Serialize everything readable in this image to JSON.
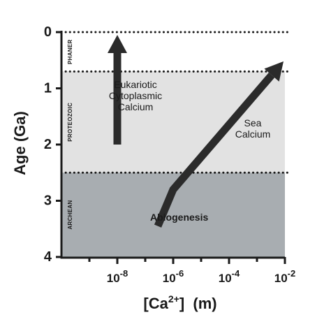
{
  "chart_data": {
    "type": "line",
    "xlabel": "[Ca2+] (m)",
    "xlabel_parts": {
      "main": "[Ca",
      "sup": "2+",
      "tail": "]  (m)"
    },
    "ylabel": "Age (Ga)",
    "x_scale": "log10",
    "xlim_exponent": [
      -10,
      -2
    ],
    "ylim": [
      0,
      4
    ],
    "y_inverted": true,
    "x_ticks": [
      {
        "base": "10",
        "exp": "-8",
        "value_exp": -8
      },
      {
        "base": "10",
        "exp": "-6",
        "value_exp": -6
      },
      {
        "base": "10",
        "exp": "-4",
        "value_exp": -4
      },
      {
        "base": "10",
        "exp": "-2",
        "value_exp": -2
      }
    ],
    "x_minor_ticks_exp": [
      -9,
      -7,
      -5,
      -3
    ],
    "y_ticks": [
      "0",
      "1",
      "2",
      "3",
      "4"
    ],
    "y_tick_values": [
      0,
      1,
      2,
      3,
      4
    ],
    "eras": [
      {
        "label": "PHANER",
        "from": 0,
        "to": 0.7,
        "color": "#ffffff"
      },
      {
        "label": "PROTEOZOIC",
        "from": 0.7,
        "to": 2.5,
        "color": "#e2e2e2"
      },
      {
        "label": "ARCHEAN",
        "from": 2.5,
        "to": 4.0,
        "color": "#a8adb1"
      }
    ],
    "era_boundaries": [
      0,
      0.7,
      2.5
    ],
    "series": [
      {
        "name": "Sea Calcium",
        "label_lines": [
          "Sea",
          "Calcium"
        ],
        "points": [
          {
            "x_exp": -6.55,
            "y": 3.45
          },
          {
            "x_exp": -6.0,
            "y": 2.8
          },
          {
            "x_exp": -2.05,
            "y": 0.52
          }
        ]
      },
      {
        "name": "Eukariotic Cytoplasmic Calcium",
        "label_lines": [
          "Eukariotic",
          "Cytoplasmic",
          "Calcium"
        ],
        "points": [
          {
            "x_exp": -8.0,
            "y": 2.0
          },
          {
            "x_exp": -8.0,
            "y": 0.05
          }
        ]
      }
    ],
    "annotations": [
      {
        "text": "Abiogenesis",
        "bold": true
      }
    ],
    "colors": {
      "arrow": "#2b2b2b",
      "axis": "#1a1a1a"
    }
  }
}
